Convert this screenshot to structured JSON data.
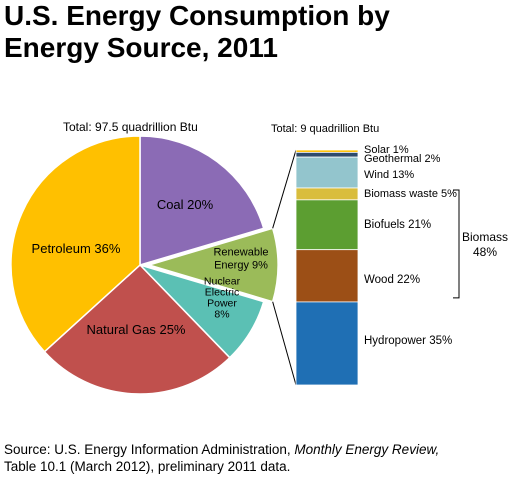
{
  "title_line1": "U.S. Energy Consumption by",
  "title_line2": "Energy Source, 2011",
  "chart_data": [
    {
      "type": "pie",
      "total_label": "Total:  97.5 quadrillion Btu",
      "slices": [
        {
          "name": "Coal",
          "label": "Coal 20%",
          "value": 20,
          "color": "#8B6BB5"
        },
        {
          "name": "Renewable Energy",
          "label": [
            "Renewable",
            "Energy 9%"
          ],
          "value": 9,
          "color": "#9BBB59",
          "exploded": true
        },
        {
          "name": "Nuclear Electric Power",
          "label": [
            "Nuclear",
            "Electric",
            "Power",
            "8%"
          ],
          "value": 8,
          "color": "#5BC0B4"
        },
        {
          "name": "Natural Gas",
          "label": "Natural Gas 25%",
          "value": 25,
          "color": "#C0504D"
        },
        {
          "name": "Petroleum",
          "label": "Petroleum 36%",
          "value": 36,
          "color": "#FFC000"
        }
      ]
    },
    {
      "type": "bar",
      "stacked": true,
      "total_label": "Total:  9 quadrillion Btu",
      "segments": [
        {
          "name": "Solar",
          "label": "Solar  1%",
          "value": 1,
          "color": "#FFC000"
        },
        {
          "name": "Geothermal",
          "label": "Geothermal  2%",
          "value": 2,
          "color": "#2E4B6B"
        },
        {
          "name": "Wind",
          "label": "Wind 13%",
          "value": 13,
          "color": "#93C5CD"
        },
        {
          "name": "Biomass waste",
          "label": "Biomass waste 5%",
          "value": 5,
          "color": "#D9BD3C"
        },
        {
          "name": "Biofuels",
          "label": "Biofuels 21%",
          "value": 21,
          "color": "#5C9E31"
        },
        {
          "name": "Wood",
          "label": "Wood  22%",
          "value": 22,
          "color": "#9C4F16"
        },
        {
          "name": "Hydropower",
          "label": "Hydropower  35%",
          "value": 35,
          "color": "#1F6FB4"
        }
      ],
      "bracket_label": [
        "Biomass",
        "48%"
      ]
    }
  ],
  "source": {
    "prefix": "Source: U.S. Energy Information Administration, ",
    "italic": "Monthly Energy Review,",
    "suffix": "Table 10.1 (March 2012), preliminary 2011 data."
  }
}
